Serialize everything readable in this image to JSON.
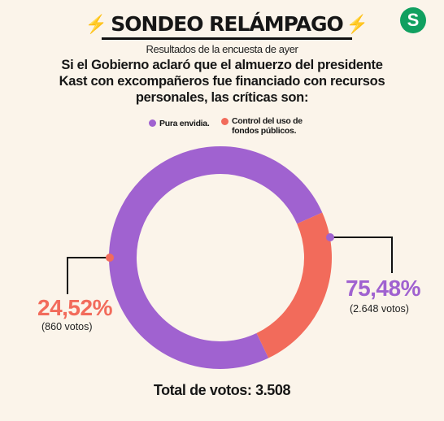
{
  "header": {
    "title": "SONDEO RELÁMPAGO",
    "subtitle": "Resultados de la encuesta de ayer",
    "logo_letter": "S"
  },
  "colors": {
    "accent_bolt": "#f2b31f",
    "logo": "#10a060",
    "series_purple": "#a062d0",
    "series_coral": "#f26b5b",
    "background": "#fbf4ea"
  },
  "chart_data": {
    "type": "pie",
    "title": "Si el Gobierno aclaró que el almuerzo del presidente Kast con excompañeros fue financiado con recursos personales, las críticas son:",
    "donut": true,
    "legend_position": "top",
    "series": [
      {
        "name": "Pura envidia.",
        "value": 75.48,
        "label": "75,48%",
        "votes": "(2.648 votos)",
        "color": "#a062d0"
      },
      {
        "name": "Control del uso de fondos públicos.",
        "value": 24.52,
        "label": "24,52%",
        "votes": "(860 votos)",
        "color": "#f26b5b"
      }
    ],
    "total_label": "Total de votos: 3.508"
  }
}
